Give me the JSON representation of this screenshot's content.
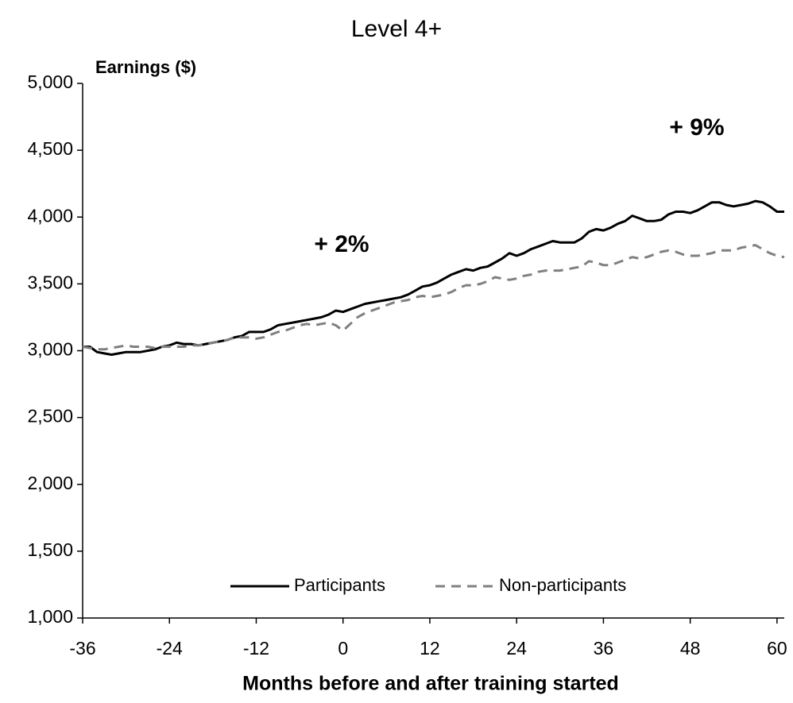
{
  "chart_data": {
    "type": "line",
    "title": "Level 4+",
    "y_label": "Earnings ($)",
    "x_label": "Months before and after training started",
    "annotations": [
      "+ 2%",
      "+ 9%"
    ],
    "x": [
      -36,
      -35,
      -34,
      -33,
      -32,
      -31,
      -30,
      -29,
      -28,
      -27,
      -26,
      -25,
      -24,
      -23,
      -22,
      -21,
      -20,
      -19,
      -18,
      -17,
      -16,
      -15,
      -14,
      -13,
      -12,
      -11,
      -10,
      -9,
      -8,
      -7,
      -6,
      -5,
      -4,
      -3,
      -2,
      -1,
      0,
      1,
      2,
      3,
      4,
      5,
      6,
      7,
      8,
      9,
      10,
      11,
      12,
      13,
      14,
      15,
      16,
      17,
      18,
      19,
      20,
      21,
      22,
      23,
      24,
      25,
      26,
      27,
      28,
      29,
      30,
      31,
      32,
      33,
      34,
      35,
      36,
      37,
      38,
      39,
      40,
      41,
      42,
      43,
      44,
      45,
      46,
      47,
      48,
      49,
      50,
      51,
      52,
      53,
      54,
      55,
      56,
      57,
      58,
      59,
      60,
      61
    ],
    "series": [
      {
        "name": "Participants",
        "color": "#000000",
        "dash": false,
        "values": [
          3030,
          3030,
          2990,
          2980,
          2970,
          2980,
          2990,
          2990,
          2990,
          3000,
          3010,
          3030,
          3040,
          3060,
          3050,
          3050,
          3040,
          3050,
          3060,
          3070,
          3080,
          3100,
          3110,
          3140,
          3140,
          3140,
          3160,
          3190,
          3200,
          3210,
          3220,
          3230,
          3240,
          3250,
          3270,
          3300,
          3290,
          3310,
          3330,
          3350,
          3360,
          3370,
          3380,
          3390,
          3400,
          3420,
          3450,
          3480,
          3490,
          3510,
          3540,
          3570,
          3590,
          3610,
          3600,
          3620,
          3630,
          3660,
          3690,
          3730,
          3710,
          3730,
          3760,
          3780,
          3800,
          3820,
          3810,
          3810,
          3810,
          3840,
          3890,
          3910,
          3900,
          3920,
          3950,
          3970,
          4010,
          3990,
          3970,
          3970,
          3980,
          4020,
          4040,
          4040,
          4030,
          4050,
          4080,
          4110,
          4110,
          4090,
          4080,
          4090,
          4100,
          4120,
          4110,
          4080,
          4040,
          4040
        ]
      },
      {
        "name": "Non-participants",
        "color": "#808080",
        "dash": true,
        "values": [
          3030,
          3020,
          3010,
          3010,
          3020,
          3030,
          3040,
          3030,
          3030,
          3030,
          3020,
          3030,
          3030,
          3030,
          3030,
          3040,
          3040,
          3050,
          3060,
          3070,
          3080,
          3100,
          3100,
          3100,
          3090,
          3100,
          3120,
          3140,
          3150,
          3170,
          3190,
          3200,
          3190,
          3200,
          3210,
          3190,
          3150,
          3200,
          3250,
          3280,
          3300,
          3320,
          3340,
          3360,
          3370,
          3380,
          3400,
          3410,
          3400,
          3410,
          3420,
          3440,
          3470,
          3490,
          3490,
          3500,
          3520,
          3550,
          3540,
          3530,
          3540,
          3560,
          3570,
          3590,
          3600,
          3600,
          3600,
          3610,
          3620,
          3630,
          3670,
          3660,
          3640,
          3640,
          3660,
          3680,
          3700,
          3690,
          3700,
          3720,
          3740,
          3750,
          3740,
          3720,
          3710,
          3710,
          3720,
          3730,
          3750,
          3750,
          3750,
          3770,
          3780,
          3790,
          3760,
          3730,
          3710,
          3700
        ]
      }
    ],
    "xlim": [
      -36,
      61
    ],
    "ylim": [
      1000,
      5000
    ],
    "xticks": [
      -36,
      -24,
      -12,
      0,
      12,
      24,
      36,
      48,
      60
    ],
    "yticks": [
      {
        "value": 1000,
        "label": "1,000"
      },
      {
        "value": 1500,
        "label": "1,500"
      },
      {
        "value": 2000,
        "label": "2,000"
      },
      {
        "value": 2500,
        "label": "2,500"
      },
      {
        "value": 3000,
        "label": "3,000"
      },
      {
        "value": 3500,
        "label": "3,500"
      },
      {
        "value": 4000,
        "label": "4,000"
      },
      {
        "value": 4500,
        "label": "4,500"
      },
      {
        "value": 5000,
        "label": "5,000"
      }
    ],
    "grid": false,
    "legend": "bottom"
  }
}
